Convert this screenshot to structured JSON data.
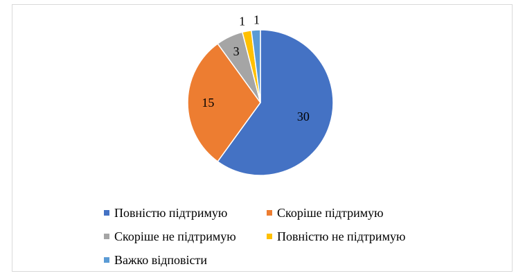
{
  "chart_data": {
    "type": "pie",
    "categories": [
      "Повністю підтримую",
      "Скоріше підтримую",
      "Скоріше не підтримую",
      "Повністю не підтримую",
      "Важко відповісти"
    ],
    "values": [
      30,
      15,
      3,
      1,
      1
    ],
    "data_labels": [
      "30",
      "15",
      "3",
      "1",
      "1"
    ],
    "colors": [
      "#4472C4",
      "#ED7D31",
      "#A5A5A5",
      "#FFC000",
      "#5B9BD5"
    ],
    "legend_position": "bottom"
  }
}
